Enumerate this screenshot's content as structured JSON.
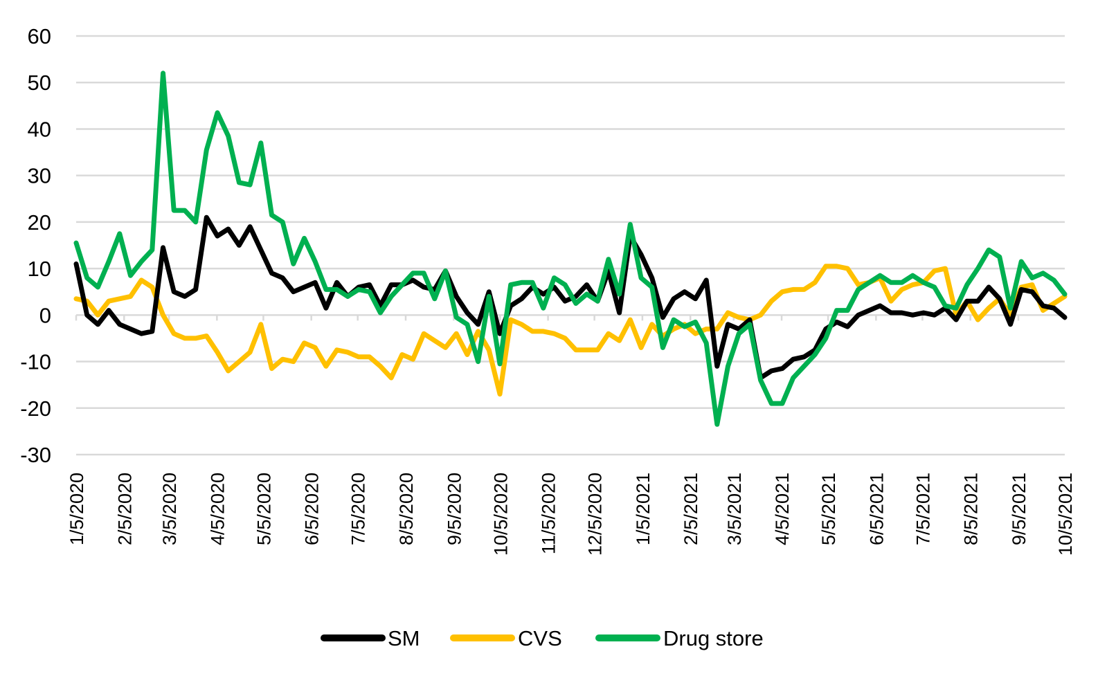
{
  "chart_data": {
    "type": "line",
    "title": "",
    "xlabel": "",
    "ylabel": "",
    "ylim": [
      -30,
      60
    ],
    "yticks": [
      "60",
      "50",
      "40",
      "30",
      "20",
      "10",
      "0",
      "-10",
      "-20",
      "-30"
    ],
    "ytick_values": [
      60,
      50,
      40,
      30,
      20,
      10,
      0,
      -10,
      -20,
      -30
    ],
    "grid": true,
    "legend_position": "bottom",
    "x_start": "1/5/2020",
    "x_end": "10/5/2021",
    "x_frequency": "weekly",
    "xtick_labels": [
      "1/5/2020",
      "2/5/2020",
      "3/5/2020",
      "4/5/2020",
      "5/5/2020",
      "6/5/2020",
      "7/5/2020",
      "8/5/2020",
      "9/5/2020",
      "10/5/2020",
      "11/5/2020",
      "12/5/2020",
      "1/5/2021",
      "2/5/2021",
      "3/5/2021",
      "4/5/2021",
      "5/5/2021",
      "6/5/2021",
      "7/5/2021",
      "8/5/2021",
      "9/5/2021",
      "10/5/2021"
    ],
    "series": [
      {
        "name": "SM",
        "color": "#000000",
        "values": [
          11,
          0,
          -2,
          1,
          -2,
          -3,
          -4,
          -3.5,
          14.5,
          5,
          4,
          5.5,
          21,
          17,
          18.5,
          15,
          19,
          14,
          9,
          8,
          5,
          6,
          7,
          1.5,
          7,
          4,
          6,
          6.5,
          2,
          6.5,
          6.5,
          7.5,
          6,
          5.5,
          9.5,
          4,
          0.5,
          -2,
          5,
          -4,
          2,
          3.5,
          6,
          4.5,
          6,
          3,
          4,
          6.5,
          3,
          9.5,
          0.5,
          17,
          13,
          8,
          -0.5,
          3.5,
          5,
          3.5,
          7.5,
          -11,
          -2,
          -3,
          -1,
          -13.5,
          -12,
          -11.5,
          -9.5,
          -9,
          -7.5,
          -3,
          -1.5,
          -2.5,
          0,
          1,
          2,
          0.5,
          0.5,
          0,
          0.5,
          0,
          1.5,
          -1,
          3,
          3,
          6,
          3.5,
          -2,
          5.5,
          5,
          2,
          1.5,
          -0.5
        ]
      },
      {
        "name": "CVS",
        "color": "#FFC000",
        "values": [
          3.5,
          3,
          0,
          3,
          3.5,
          4,
          7.5,
          6,
          0,
          -4,
          -5,
          -5,
          -4.5,
          -8,
          -12,
          -10,
          -8,
          -2,
          -11.5,
          -9.5,
          -10,
          -6,
          -7,
          -11,
          -7.5,
          -8,
          -9,
          -9,
          -11,
          -13.5,
          -8.5,
          -9.5,
          -4,
          -5.5,
          -7,
          -4,
          -8.5,
          -3.5,
          -7.5,
          -17,
          -1,
          -2,
          -3.5,
          -3.5,
          -4,
          -5,
          -7.5,
          -7.5,
          -7.5,
          -4,
          -5.5,
          -1,
          -7,
          -2,
          -4.5,
          -3,
          -2,
          -4,
          -3,
          -3,
          0.5,
          -0.5,
          -1,
          0,
          3,
          5,
          5.5,
          5.5,
          7,
          10.5,
          10.5,
          10,
          6.5,
          7,
          8,
          3,
          5.5,
          6.5,
          7,
          9.5,
          10,
          0,
          3,
          -1,
          1.5,
          3.5,
          0,
          6,
          6.5,
          1,
          2.5,
          4
        ]
      },
      {
        "name": "Drug store",
        "color": "#00B050",
        "values": [
          15.5,
          8,
          6,
          11.5,
          17.5,
          8.5,
          11.5,
          14,
          52,
          22.5,
          22.5,
          20,
          35.5,
          43.5,
          38.5,
          28.5,
          28,
          37,
          21.5,
          20,
          11,
          16.5,
          11.5,
          5.5,
          5.5,
          4,
          5.5,
          5,
          0.5,
          4,
          6.5,
          9,
          9,
          3.5,
          9.5,
          -0.5,
          -2,
          -10,
          4,
          -10.5,
          6.5,
          7,
          7,
          1.5,
          8,
          6.5,
          2.5,
          4.5,
          3,
          12,
          4.5,
          19.5,
          8,
          6,
          -7,
          -1,
          -2.5,
          -1.5,
          -6,
          -23.5,
          -11,
          -4,
          -2,
          -14,
          -19,
          -19,
          -13.5,
          -11,
          -8.5,
          -5,
          1,
          1,
          5.5,
          7,
          8.5,
          7,
          7,
          8.5,
          7,
          6,
          2,
          1.5,
          6.5,
          10,
          14,
          12.5,
          1.5,
          11.5,
          8,
          9,
          7.5,
          4.5
        ]
      }
    ]
  }
}
